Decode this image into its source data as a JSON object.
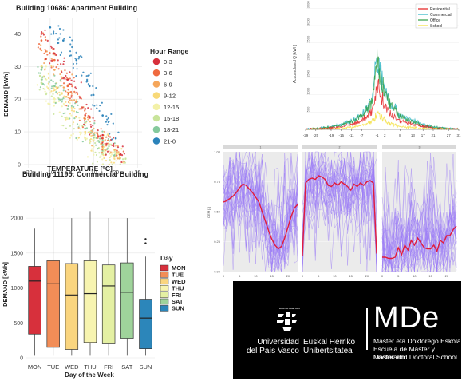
{
  "colors": {
    "hours": [
      "#d7303c",
      "#ef6a3f",
      "#f5a65a",
      "#f8d978",
      "#f3f1a8",
      "#c8e49a",
      "#85c99c",
      "#2b83ba"
    ],
    "days": [
      "#d7303c",
      "#f28d57",
      "#fad57f",
      "#f7f4b0",
      "#e4f0a3",
      "#9fd39b",
      "#2c86ba"
    ],
    "sectors": {
      "Residential": "#e41a1c",
      "Commercial": "#2bb5c5",
      "Office": "#2e9e44",
      "School": "#f4df3c"
    },
    "purple": "#9b7cf6",
    "red_line": "#e21c3c"
  },
  "chart_data": [
    {
      "type": "scatter",
      "title": "Building 10686: Apartment Building",
      "xlabel": "TEMPERATURE [°C]",
      "ylabel": "DEMAND [kWh]",
      "xlim": [
        -22,
        32
      ],
      "ylim": [
        -1,
        45
      ],
      "xticks": [
        -20,
        -10,
        0,
        10,
        20,
        30
      ],
      "yticks": [
        0,
        10,
        20,
        30,
        40
      ],
      "legend": {
        "title": "Hour Range",
        "position": "right",
        "entries": [
          "0-3",
          "3-6",
          "6-9",
          "9-12",
          "12-15",
          "15-18",
          "18-21",
          "21-0"
        ]
      },
      "series": [
        {
          "name": "0-3",
          "x": [
            -14,
            -8,
            -2,
            6,
            14,
            22
          ],
          "y": [
            40,
            34,
            26,
            17,
            9,
            3
          ]
        },
        {
          "name": "3-6",
          "x": [
            -14,
            -8,
            -2,
            6,
            14,
            22
          ],
          "y": [
            38,
            32,
            24,
            15,
            8,
            3
          ]
        },
        {
          "name": "6-9",
          "x": [
            -14,
            -8,
            -2,
            6,
            14,
            22
          ],
          "y": [
            35,
            29,
            22,
            14,
            7,
            3
          ]
        },
        {
          "name": "9-12",
          "x": [
            -14,
            -8,
            -2,
            6,
            14,
            22
          ],
          "y": [
            30,
            24,
            17,
            10,
            5,
            2
          ]
        },
        {
          "name": "12-15",
          "x": [
            -14,
            -8,
            -2,
            6,
            14,
            22
          ],
          "y": [
            26,
            20,
            14,
            8,
            4,
            2
          ]
        },
        {
          "name": "15-18",
          "x": [
            -14,
            -8,
            -2,
            6,
            14,
            22
          ],
          "y": [
            25,
            20,
            14,
            8,
            4,
            2
          ]
        },
        {
          "name": "18-21",
          "x": [
            -14,
            -8,
            -2,
            6,
            14,
            22
          ],
          "y": [
            29,
            24,
            17,
            11,
            6,
            3
          ]
        },
        {
          "name": "21-0",
          "x": [
            -10,
            -4,
            2,
            8,
            14,
            20
          ],
          "y": [
            42,
            38,
            32,
            24,
            15,
            8
          ]
        }
      ]
    },
    {
      "type": "box",
      "title": "Building 11195: Commercial Building",
      "xlabel": "Day of the Week",
      "ylabel": "DEMAND [kWh]",
      "ylim": [
        0,
        2150
      ],
      "yticks": [
        0,
        500,
        1000,
        1500,
        2000
      ],
      "categories": [
        "MON",
        "TUE",
        "WED",
        "THU",
        "FRI",
        "SAT",
        "SUN"
      ],
      "legend": {
        "title": "Day",
        "position": "right",
        "entries": [
          "MON",
          "TUE",
          "WED",
          "THU",
          "FRI",
          "SAT",
          "SUN"
        ]
      },
      "boxes": [
        {
          "min": 30,
          "q1": 340,
          "median": 1100,
          "q3": 1310,
          "max": 1850
        },
        {
          "min": 30,
          "q1": 150,
          "median": 1060,
          "q3": 1390,
          "max": 2150
        },
        {
          "min": 30,
          "q1": 120,
          "median": 900,
          "q3": 1350,
          "max": 2000
        },
        {
          "min": 30,
          "q1": 220,
          "median": 920,
          "q3": 1390,
          "max": 2100
        },
        {
          "min": 30,
          "q1": 200,
          "median": 1030,
          "q3": 1330,
          "max": 2000
        },
        {
          "min": 30,
          "q1": 280,
          "median": 940,
          "q3": 1360,
          "max": 2000
        },
        {
          "min": 30,
          "q1": 130,
          "median": 570,
          "q3": 840,
          "max": 1450
        }
      ],
      "outliers": [
        {
          "category": "SUN",
          "values": [
            1640,
            1700
          ]
        }
      ]
    },
    {
      "type": "line",
      "ylabel": "Accumulated Q [kWh]",
      "legend": {
        "position": "top-right",
        "entries": [
          "Residential",
          "Commercial",
          "Office",
          "School"
        ]
      },
      "xticks": [
        "-29",
        "-25",
        "-19",
        "-15",
        "-11",
        "-7",
        "-1",
        "2",
        "8",
        "13",
        "17",
        "21",
        "27",
        "31"
      ],
      "yticks": [
        "500",
        "1000",
        "1500",
        "2000",
        "2500",
        "3000",
        "3500"
      ],
      "x": [
        -29,
        -25,
        -19,
        -15,
        -11,
        -7,
        -3,
        -1,
        0,
        2,
        4,
        8,
        13,
        17,
        21,
        27,
        31
      ],
      "series": [
        {
          "name": "Residential",
          "values": [
            0,
            10,
            40,
            80,
            150,
            250,
            500,
            1300,
            1100,
            700,
            450,
            250,
            150,
            80,
            40,
            10,
            0
          ]
        },
        {
          "name": "Commercial",
          "values": [
            0,
            20,
            70,
            140,
            250,
            420,
            850,
            2100,
            1700,
            1200,
            800,
            420,
            250,
            140,
            70,
            20,
            0
          ]
        },
        {
          "name": "Office",
          "values": [
            0,
            20,
            60,
            120,
            220,
            380,
            760,
            1900,
            1550,
            1100,
            720,
            380,
            220,
            120,
            60,
            20,
            0
          ]
        },
        {
          "name": "School",
          "values": [
            0,
            5,
            15,
            30,
            60,
            110,
            220,
            450,
            380,
            260,
            170,
            90,
            50,
            25,
            10,
            5,
            0
          ]
        }
      ]
    },
    {
      "type": "line",
      "ylabel": "DEM [-]",
      "ylim": [
        0,
        1
      ],
      "yticks": [
        "0.00",
        "0.25",
        "0.50",
        "0.75",
        "1.00"
      ],
      "xticks": [
        "0",
        "5",
        "10",
        "15",
        "20"
      ],
      "panels": [
        {
          "strip": "1",
          "mean": [
            0.58,
            0.59,
            0.61,
            0.63,
            0.66,
            0.7,
            0.73,
            0.72,
            0.69,
            0.66,
            0.62,
            0.58,
            0.5,
            0.42,
            0.34,
            0.27,
            0.22,
            0.19,
            0.21,
            0.28,
            0.37,
            0.46,
            0.53,
            0.56
          ]
        },
        {
          "strip": "2",
          "mean": [
            0.13,
            0.74,
            0.77,
            0.78,
            0.77,
            0.8,
            0.79,
            0.77,
            0.72,
            0.71,
            0.74,
            0.72,
            0.75,
            0.73,
            0.71,
            0.68,
            0.73,
            0.71,
            0.74,
            0.72,
            0.75,
            0.76,
            0.74,
            0.15
          ]
        },
        {
          "strip": "3",
          "mean": [
            0.12,
            0.12,
            0.11,
            0.11,
            0.12,
            0.2,
            0.14,
            0.22,
            0.18,
            0.26,
            0.22,
            0.28,
            0.24,
            0.2,
            0.19,
            0.19,
            0.22,
            0.17,
            0.26,
            0.24,
            0.3,
            0.3,
            0.35,
            0.38
          ]
        }
      ]
    }
  ],
  "logo": {
    "motto": "eman ta zabal zazu",
    "university_es": [
      "Universidad",
      "del País Vasco"
    ],
    "university_eu": [
      "Euskal Herriko",
      "Unibertsitatea"
    ],
    "mde": "MDe",
    "school_lines": [
      "Master eta Doktorego Eskola",
      "Escuela de Máster y Doctorado",
      "Master and Doctoral School"
    ]
  }
}
